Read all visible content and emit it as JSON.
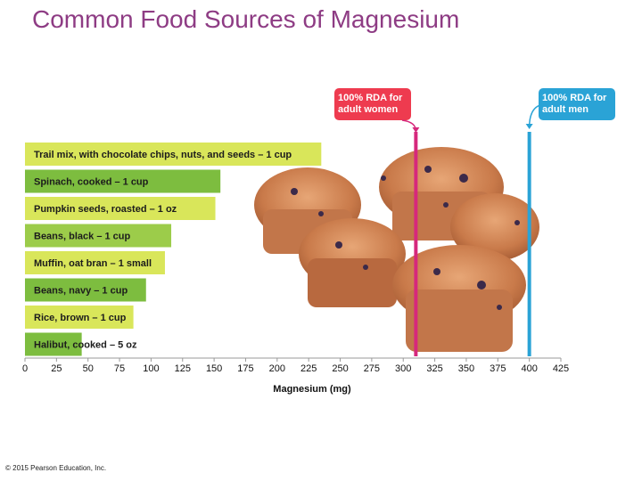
{
  "title": "Common Food Sources of Magnesium",
  "copyright": "© 2015 Pearson Education, Inc.",
  "colors": {
    "title": "#8e3c84",
    "bar_shades": [
      "#d9e65a",
      "#7dbd3f",
      "#d9e65a",
      "#9ccc4a",
      "#d9e65a",
      "#7dbd3f",
      "#d9e65a",
      "#7dbd3f"
    ],
    "rda_women": "#d6287c",
    "rda_men": "#2aa3d6",
    "rda_box_women": "#ee3b4f",
    "rda_box_men": "#2aa3d6"
  },
  "chart_data": {
    "type": "bar",
    "orientation": "horizontal",
    "categories": [
      "Trail mix, with chocolate chips, nuts, and seeds – 1 cup",
      "Spinach, cooked – 1 cup",
      "Pumpkin seeds, roasted – 1 oz",
      "Beans, black – 1 cup",
      "Muffin, oat bran – 1 small",
      "Beans, navy – 1 cup",
      "Rice, brown – 1 cup",
      "Halibut, cooked – 5 oz"
    ],
    "values": [
      235,
      155,
      151,
      116,
      111,
      96,
      86,
      45
    ],
    "xlabel": "Magnesium (mg)",
    "ylabel": "",
    "xlim": [
      0,
      425
    ],
    "xticks": [
      0,
      25,
      50,
      75,
      100,
      125,
      150,
      175,
      200,
      225,
      250,
      275,
      300,
      325,
      350,
      375,
      400,
      425
    ],
    "reference_lines": [
      {
        "value": 310,
        "label_lines": [
          "100% RDA for",
          "adult women"
        ]
      },
      {
        "value": 400,
        "label_lines": [
          "100% RDA for",
          "adult men"
        ]
      }
    ]
  }
}
